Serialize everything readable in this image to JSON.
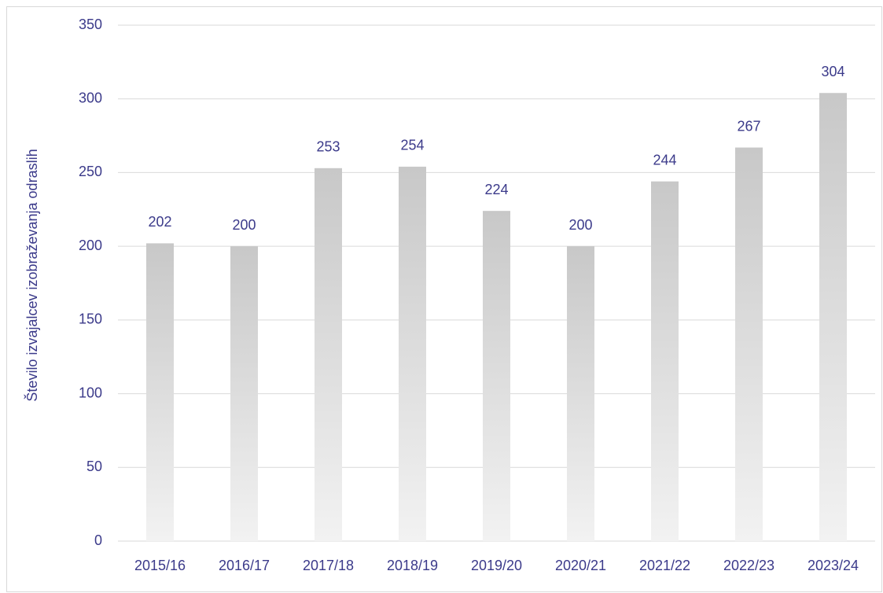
{
  "chart_data": {
    "type": "bar",
    "y_axis_label": "Število izvajalcev izobraževanja odraslih",
    "categories": [
      "2015/16",
      "2016/17",
      "2017/18",
      "2018/19",
      "2019/20",
      "2020/21",
      "2021/22",
      "2022/23",
      "2023/24"
    ],
    "values": [
      202,
      200,
      253,
      254,
      224,
      200,
      244,
      267,
      304
    ],
    "color": "#c8c8c8",
    "ylim": [
      0,
      350
    ],
    "yticks": [
      0,
      50,
      100,
      150,
      200,
      250,
      300,
      350
    ],
    "grid": true
  }
}
